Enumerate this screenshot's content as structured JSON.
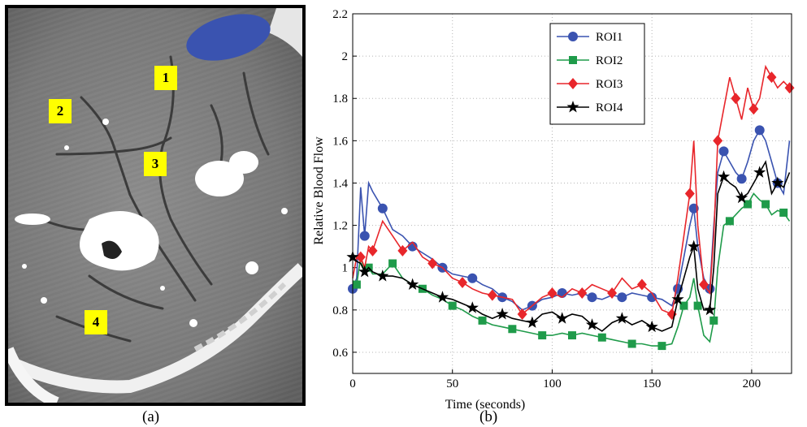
{
  "panel_a": {
    "caption": "(a)",
    "roi_labels": [
      "1",
      "2",
      "3",
      "4"
    ],
    "marker_color": "#3a53b0",
    "label_color": "#ffff00"
  },
  "panel_b": {
    "caption": "(b)"
  },
  "chart_data": {
    "type": "line",
    "xlabel": "Time (seconds)",
    "ylabel": "Relative Blood Flow",
    "xlim": [
      0,
      220
    ],
    "ylim": [
      0.5,
      2.2
    ],
    "xticks": [
      0,
      50,
      100,
      150,
      200
    ],
    "yticks": [
      0.6,
      0.8,
      1,
      1.2,
      1.4,
      1.6,
      1.8,
      2,
      2.2
    ],
    "ytick_labels": [
      "0.6",
      "0.8",
      "1",
      "1.2",
      "1.4",
      "1.6",
      "1.8",
      "2",
      "2.2"
    ],
    "grid": true,
    "legend_position": "top-center",
    "x": [
      0,
      2,
      4,
      6,
      8,
      10,
      15,
      20,
      25,
      30,
      35,
      40,
      45,
      50,
      55,
      60,
      65,
      70,
      75,
      80,
      85,
      90,
      95,
      100,
      105,
      110,
      115,
      120,
      125,
      130,
      135,
      140,
      145,
      150,
      155,
      160,
      163,
      166,
      169,
      171,
      173,
      176,
      179,
      181,
      183,
      186,
      189,
      192,
      195,
      198,
      201,
      204,
      207,
      210,
      213,
      216,
      219
    ],
    "series": [
      {
        "name": "ROI1",
        "color": "#3a53b0",
        "marker": "circle",
        "values": [
          0.9,
          0.95,
          1.38,
          1.15,
          1.4,
          1.36,
          1.28,
          1.18,
          1.15,
          1.1,
          1.07,
          1.04,
          1.0,
          0.97,
          0.96,
          0.95,
          0.92,
          0.9,
          0.86,
          0.84,
          0.8,
          0.82,
          0.85,
          0.86,
          0.88,
          0.87,
          0.88,
          0.86,
          0.85,
          0.87,
          0.86,
          0.88,
          0.87,
          0.86,
          0.85,
          0.82,
          0.9,
          1.05,
          1.2,
          1.28,
          1.1,
          0.95,
          0.9,
          1.2,
          1.45,
          1.55,
          1.5,
          1.45,
          1.42,
          1.5,
          1.6,
          1.65,
          1.6,
          1.5,
          1.4,
          1.35,
          1.6
        ]
      },
      {
        "name": "ROI2",
        "color": "#1f9b4a",
        "marker": "square",
        "values": [
          0.9,
          0.92,
          1.05,
          0.98,
          1.0,
          0.97,
          0.97,
          1.02,
          0.95,
          0.92,
          0.9,
          0.87,
          0.85,
          0.82,
          0.8,
          0.77,
          0.75,
          0.73,
          0.72,
          0.71,
          0.7,
          0.69,
          0.68,
          0.68,
          0.69,
          0.68,
          0.69,
          0.68,
          0.67,
          0.66,
          0.65,
          0.64,
          0.64,
          0.63,
          0.63,
          0.64,
          0.72,
          0.82,
          0.86,
          0.95,
          0.82,
          0.68,
          0.65,
          0.75,
          1.0,
          1.2,
          1.22,
          1.25,
          1.28,
          1.3,
          1.35,
          1.32,
          1.3,
          1.25,
          1.27,
          1.26,
          1.22
        ]
      },
      {
        "name": "ROI3",
        "color": "#e8262b",
        "marker": "diamond",
        "values": [
          0.95,
          1.05,
          1.05,
          1.0,
          1.1,
          1.08,
          1.22,
          1.15,
          1.08,
          1.12,
          1.05,
          1.02,
          1.0,
          0.95,
          0.93,
          0.9,
          0.88,
          0.87,
          0.86,
          0.85,
          0.78,
          0.82,
          0.86,
          0.88,
          0.86,
          0.9,
          0.88,
          0.92,
          0.9,
          0.88,
          0.95,
          0.9,
          0.92,
          0.88,
          0.8,
          0.78,
          0.95,
          1.15,
          1.35,
          1.6,
          1.2,
          0.92,
          0.88,
          1.15,
          1.6,
          1.75,
          1.9,
          1.8,
          1.7,
          1.85,
          1.75,
          1.8,
          1.95,
          1.9,
          1.85,
          1.88,
          1.85
        ]
      },
      {
        "name": "ROI4",
        "color": "#000000",
        "marker": "star",
        "values": [
          1.05,
          1.03,
          1.02,
          0.98,
          1.0,
          0.98,
          0.96,
          0.96,
          0.95,
          0.92,
          0.9,
          0.88,
          0.86,
          0.85,
          0.83,
          0.81,
          0.78,
          0.76,
          0.78,
          0.76,
          0.75,
          0.74,
          0.78,
          0.79,
          0.76,
          0.78,
          0.77,
          0.73,
          0.7,
          0.74,
          0.76,
          0.73,
          0.75,
          0.72,
          0.7,
          0.72,
          0.85,
          0.95,
          1.05,
          1.1,
          0.9,
          0.8,
          0.8,
          1.0,
          1.35,
          1.43,
          1.4,
          1.38,
          1.33,
          1.35,
          1.4,
          1.45,
          1.5,
          1.35,
          1.4,
          1.38,
          1.45
        ]
      }
    ]
  }
}
